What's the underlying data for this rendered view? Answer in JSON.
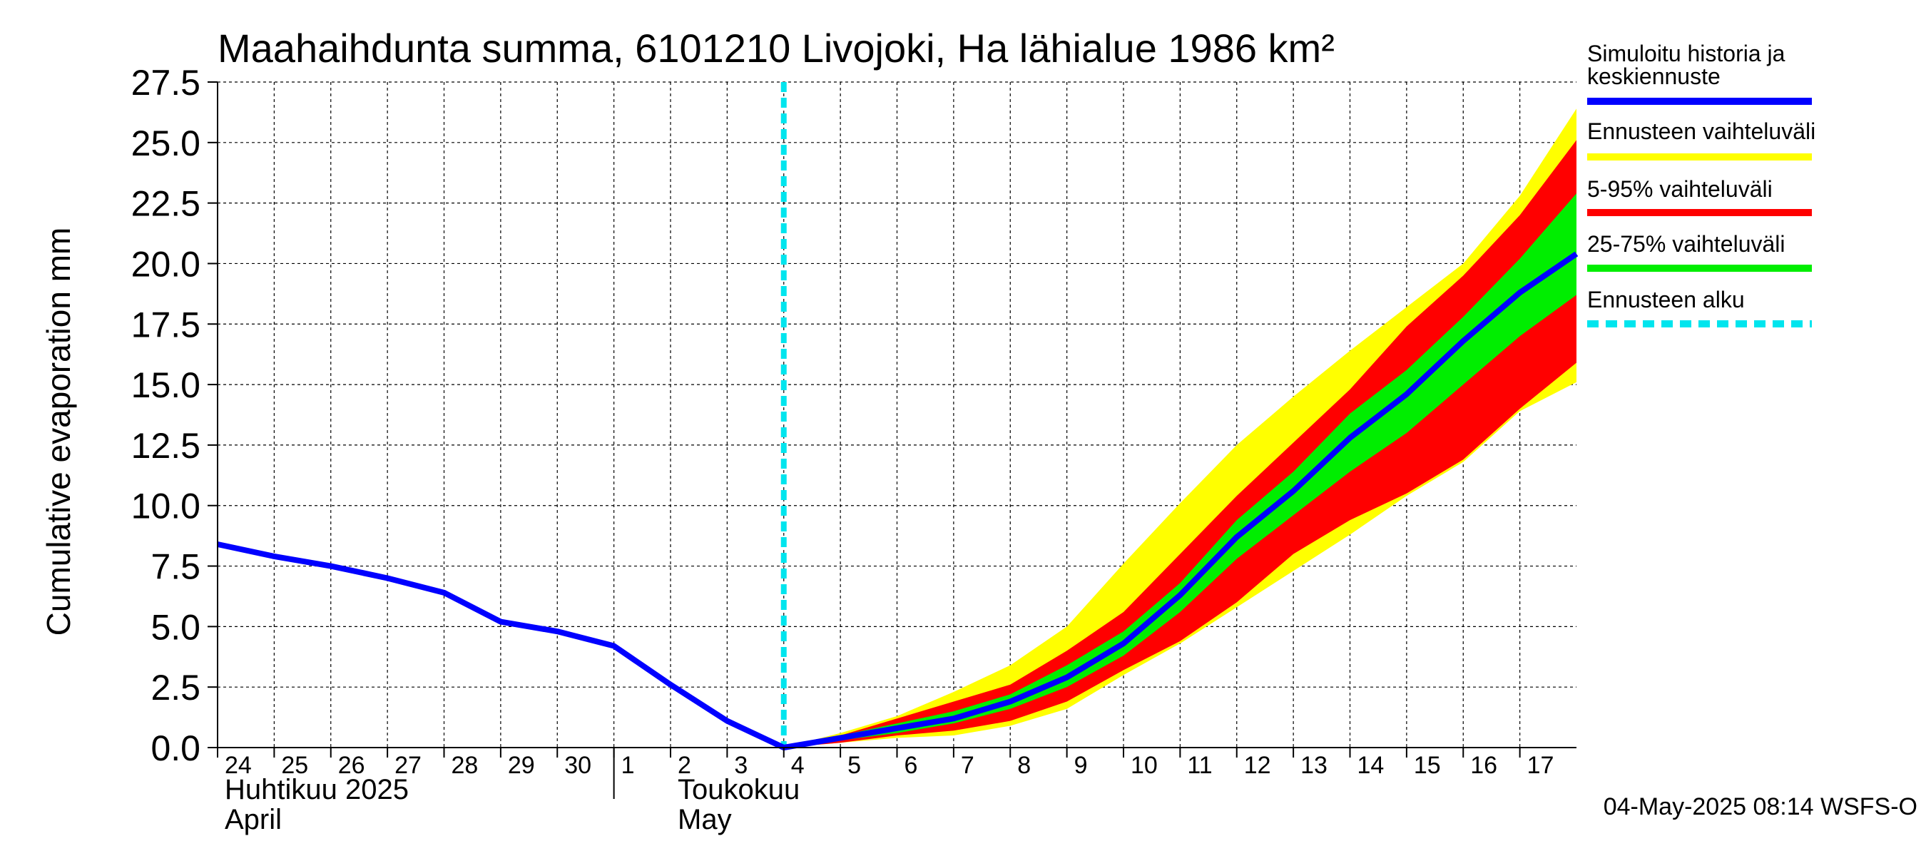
{
  "chart_data": {
    "type": "area",
    "title": "Maahaihdunta summa, 6101210 Livojoki, Ha lähialue 1986 km²",
    "ylabel": "Cumulative evaporation   mm",
    "xlabel": "",
    "ylim": [
      0,
      27.5
    ],
    "yticks": [
      "0.0",
      "2.5",
      "5.0",
      "7.5",
      "10.0",
      "12.5",
      "15.0",
      "17.5",
      "20.0",
      "22.5",
      "25.0",
      "27.5"
    ],
    "ytick_values": [
      0,
      2.5,
      5,
      7.5,
      10,
      12.5,
      15,
      17.5,
      20,
      22.5,
      25,
      27.5
    ],
    "x_range_days": [
      0,
      24.0
    ],
    "day_ticks": [
      "24",
      "25",
      "26",
      "27",
      "28",
      "29",
      "30",
      "1",
      "2",
      "3",
      "4",
      "5",
      "6",
      "7",
      "8",
      "9",
      "10",
      "11",
      "12",
      "13",
      "14",
      "15",
      "16",
      "17"
    ],
    "month_labels": [
      {
        "line1": "Huhtikuu  2025",
        "line2": "April",
        "day": 0
      },
      {
        "line1": "Toukokuu",
        "line2": "May",
        "day": 8
      }
    ],
    "month_divider_day": 7,
    "forecast_start_day": 10,
    "grid": true,
    "x": [
      0,
      1,
      2,
      3,
      4,
      5,
      6,
      7,
      8,
      9,
      10,
      11,
      12,
      13,
      14,
      15,
      16,
      17,
      18,
      19,
      20,
      21,
      22,
      23,
      24
    ],
    "series": [
      {
        "name": "Simuloitu historia ja keskiennuste",
        "x": [
          0,
          1,
          2,
          3,
          4,
          5,
          6,
          7,
          8,
          9,
          10,
          11,
          12,
          13,
          14,
          15,
          16,
          17,
          18,
          19,
          20,
          21,
          22,
          23,
          24
        ],
        "values": [
          8.4,
          7.9,
          7.5,
          7.0,
          6.4,
          5.2,
          4.8,
          4.2,
          2.6,
          1.1,
          0.0,
          0.4,
          0.8,
          1.2,
          1.9,
          2.9,
          4.3,
          6.3,
          8.7,
          10.6,
          12.8,
          14.6,
          16.8,
          18.8,
          20.4
        ]
      }
    ],
    "bands": [
      {
        "name": "Ennusteen vaihteluväli",
        "x": [
          10,
          11,
          12,
          13,
          14,
          15,
          16,
          17,
          18,
          19,
          20,
          21,
          22,
          23,
          24
        ],
        "low": [
          0,
          0.2,
          0.4,
          0.5,
          0.9,
          1.6,
          3.0,
          4.3,
          5.8,
          7.3,
          8.8,
          10.4,
          11.8,
          13.9,
          15.1
        ],
        "high": [
          0,
          0.6,
          1.3,
          2.3,
          3.4,
          5.0,
          7.6,
          10.1,
          12.5,
          14.5,
          16.4,
          18.2,
          20.0,
          22.8,
          26.4
        ]
      },
      {
        "name": "5-95% vaihteluväli",
        "x": [
          10,
          11,
          12,
          13,
          14,
          15,
          16,
          17,
          18,
          19,
          20,
          21,
          22,
          23,
          24
        ],
        "low": [
          0,
          0.2,
          0.5,
          0.7,
          1.1,
          1.9,
          3.2,
          4.4,
          6.0,
          8.0,
          9.4,
          10.5,
          11.9,
          14.0,
          15.9
        ],
        "high": [
          0,
          0.5,
          1.2,
          1.9,
          2.6,
          4.0,
          5.6,
          8.0,
          10.4,
          12.6,
          14.8,
          17.4,
          19.5,
          22.0,
          25.1
        ]
      },
      {
        "name": "25-75% vaihteluväli",
        "x": [
          10,
          11,
          12,
          13,
          14,
          15,
          16,
          17,
          18,
          19,
          20,
          21,
          22,
          23,
          24
        ],
        "low": [
          0,
          0.3,
          0.6,
          1.0,
          1.6,
          2.5,
          3.8,
          5.6,
          7.8,
          9.6,
          11.4,
          13.0,
          15.0,
          17.0,
          18.7
        ],
        "high": [
          0,
          0.5,
          1.0,
          1.5,
          2.2,
          3.4,
          4.8,
          6.8,
          9.4,
          11.4,
          13.8,
          15.6,
          17.8,
          20.2,
          22.9
        ]
      }
    ],
    "legend": [
      {
        "label": "Simuloitu historia ja keskiennuste",
        "color": "#0000ff",
        "style": "solid"
      },
      {
        "label": "Ennusteen vaihteluväli",
        "color": "#ffff00",
        "style": "solid"
      },
      {
        "label": "5-95% vaihteluväli",
        "color": "#ff0000",
        "style": "solid"
      },
      {
        "label": "25-75% vaihteluväli",
        "color": "#00ee00",
        "style": "solid"
      },
      {
        "label": "Ennusteen alku",
        "color": "#00e5ee",
        "style": "dashed"
      }
    ],
    "legend_position": "right",
    "footer": "04-May-2025 08:14 WSFS-O"
  }
}
